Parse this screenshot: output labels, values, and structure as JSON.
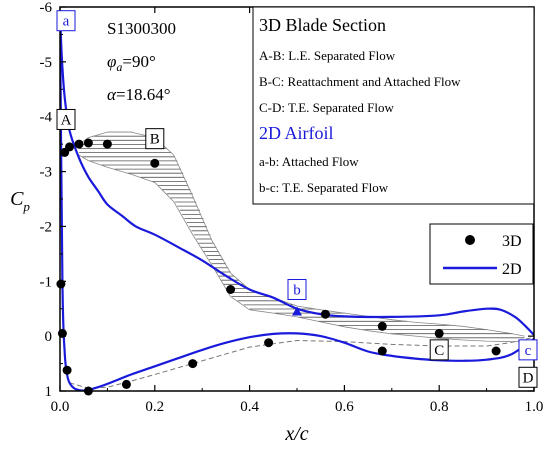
{
  "chart_data": {
    "type": "line",
    "xlabel": "x/c",
    "ylabel": "Cp",
    "xlim": [
      0,
      1.0
    ],
    "ylim": [
      1,
      -6
    ],
    "y_inverted": true,
    "x_ticks": [
      "0.0",
      "0.2",
      "0.4",
      "0.6",
      "0.8",
      "1.0"
    ],
    "y_ticks": [
      "-6",
      "-5",
      "-4",
      "-3",
      "-2",
      "-1",
      "0",
      "1"
    ],
    "annotation": {
      "case": "S1300300",
      "phi_symbol": "φ",
      "phi_sub": "a",
      "phi_value": "=90°",
      "alpha_symbol": "α",
      "alpha_value": "=18.64°"
    },
    "notes_box": {
      "title_3d": "3D Blade Section",
      "lines_3d": [
        "A-B: L.E. Separated Flow",
        "B-C: Reattachment and Attached Flow",
        "C-D: T.E. Separated Flow"
      ],
      "title_2d": "2D Airfoil",
      "lines_2d": [
        "a-b: Attached Flow",
        "b-c: T.E. Separated Flow"
      ]
    },
    "legend": {
      "entries": [
        "3D",
        "2D"
      ],
      "placement": "right"
    },
    "point_labels": [
      {
        "text": "A",
        "x": 0.005,
        "y": -3.95,
        "color": "#000000"
      },
      {
        "text": "B",
        "x": 0.2,
        "y": -3.6,
        "color": "#000000"
      },
      {
        "text": "C",
        "x": 0.8,
        "y": 0.25,
        "color": "#000000"
      },
      {
        "text": "D",
        "x": 0.99,
        "y": 0.75,
        "color": "#000000"
      },
      {
        "text": "a",
        "x": 0.0,
        "y": -5.75,
        "color": "#1a1adb"
      },
      {
        "text": "b",
        "x": 0.5,
        "y": -0.85,
        "color": "#1a1adb"
      },
      {
        "text": "c",
        "x": 0.99,
        "y": 0.25,
        "color": "#1a1adb"
      }
    ],
    "series": [
      {
        "name": "3D",
        "marker": "circle",
        "color": "#000000",
        "x": [
          0.002,
          0.01,
          0.02,
          0.04,
          0.06,
          0.1,
          0.2,
          0.36,
          0.56,
          0.68,
          0.8,
          0.92,
          0.005,
          0.015,
          0.06,
          0.14,
          0.28,
          0.44,
          0.68
        ],
        "y": [
          -0.95,
          -3.35,
          -3.45,
          -3.5,
          -3.52,
          -3.5,
          -3.15,
          -0.85,
          -0.4,
          -0.18,
          -0.05,
          0.27,
          -0.05,
          0.62,
          1.0,
          0.88,
          0.5,
          0.12,
          0.27
        ]
      },
      {
        "name": "2D",
        "color": "#1a1adb",
        "upper": {
          "x": [
            0.0,
            0.002,
            0.005,
            0.01,
            0.02,
            0.04,
            0.06,
            0.08,
            0.1,
            0.13,
            0.16,
            0.2,
            0.25,
            0.3,
            0.35,
            0.4,
            0.45,
            0.5,
            0.55,
            0.6,
            0.7,
            0.8,
            0.85,
            0.9,
            0.93,
            0.96,
            0.98,
            1.0
          ],
          "y": [
            -5.9,
            -5.45,
            -4.9,
            -4.35,
            -3.75,
            -3.25,
            -2.9,
            -2.65,
            -2.4,
            -2.2,
            -2.0,
            -1.85,
            -1.62,
            -1.38,
            -1.1,
            -0.85,
            -0.7,
            -0.5,
            -0.4,
            -0.36,
            -0.35,
            -0.38,
            -0.45,
            -0.5,
            -0.48,
            -0.35,
            -0.2,
            -0.02
          ]
        },
        "lower": {
          "x": [
            0.0,
            0.005,
            0.01,
            0.015,
            0.02,
            0.03,
            0.045,
            0.06,
            0.08,
            0.1,
            0.15,
            0.2,
            0.25,
            0.3,
            0.35,
            0.4,
            0.45,
            0.5,
            0.55,
            0.6,
            0.65,
            0.7,
            0.75,
            0.8,
            0.85,
            0.9,
            0.95,
            1.0
          ],
          "y": [
            -5.9,
            -1.0,
            0.3,
            0.7,
            0.85,
            0.95,
            0.99,
            0.98,
            0.93,
            0.87,
            0.7,
            0.55,
            0.4,
            0.25,
            0.12,
            0.02,
            -0.04,
            -0.05,
            0.0,
            0.12,
            0.28,
            0.36,
            0.41,
            0.44,
            0.45,
            0.43,
            0.34,
            0.05
          ]
        }
      }
    ],
    "band_3d": {
      "x": [
        0.04,
        0.06,
        0.1,
        0.15,
        0.2,
        0.24,
        0.28,
        0.32,
        0.36,
        0.4,
        0.45,
        0.5,
        0.55,
        0.6,
        0.65,
        0.7,
        0.75,
        0.8,
        0.85,
        0.9,
        0.95,
        0.98
      ],
      "top": [
        -3.5,
        -3.62,
        -3.72,
        -3.72,
        -3.62,
        -3.3,
        -2.55,
        -1.75,
        -1.15,
        -0.85,
        -0.7,
        -0.55,
        -0.48,
        -0.42,
        -0.36,
        -0.3,
        -0.25,
        -0.22,
        -0.18,
        -0.12,
        -0.05,
        0.0
      ],
      "bottom": [
        -3.3,
        -3.2,
        -3.08,
        -2.95,
        -2.8,
        -2.45,
        -1.85,
        -1.3,
        -0.72,
        -0.48,
        -0.42,
        -0.35,
        -0.26,
        -0.17,
        -0.1,
        -0.04,
        0.0,
        0.04,
        0.07,
        0.09,
        0.1,
        0.1
      ]
    },
    "dashed_lower": {
      "x": [
        0.02,
        0.06,
        0.1,
        0.15,
        0.2,
        0.3,
        0.4,
        0.5,
        0.6,
        0.7,
        0.8,
        0.9,
        0.95,
        1.0
      ],
      "y": [
        0.85,
        0.95,
        0.93,
        0.82,
        0.7,
        0.45,
        0.2,
        0.08,
        0.1,
        0.15,
        0.18,
        0.18,
        0.12,
        0.02
      ]
    },
    "blue_marker": {
      "x": 0.5,
      "y": -0.45
    }
  }
}
